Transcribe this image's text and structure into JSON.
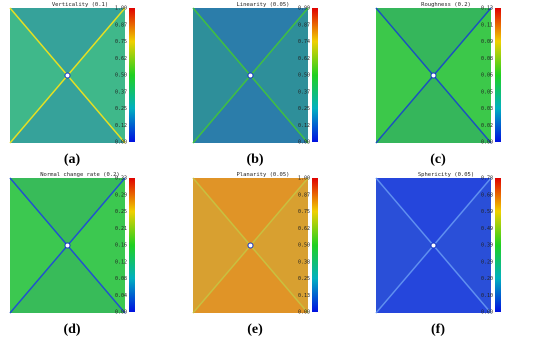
{
  "panels": [
    {
      "title": "Verticality (0.1)",
      "ticks": [
        "1.00",
        "0.87",
        "0.75",
        "0.62",
        "0.50",
        "0.37",
        "0.25",
        "0.12",
        "0.00"
      ],
      "label": "(a)"
    },
    {
      "title": "Linearity (0.05)",
      "ticks": [
        "0.99",
        "0.87",
        "0.74",
        "0.62",
        "0.50",
        "0.37",
        "0.25",
        "0.12",
        "0.00"
      ],
      "label": "(b)"
    },
    {
      "title": "Roughness (0.2)",
      "ticks": [
        "0.13",
        "0.11",
        "0.09",
        "0.08",
        "0.06",
        "0.05",
        "0.03",
        "0.02",
        "0.00"
      ],
      "label": "(c)"
    },
    {
      "title": "Normal change rate (0.2)",
      "ticks": [
        "0.33",
        "0.29",
        "0.25",
        "0.21",
        "0.16",
        "0.12",
        "0.08",
        "0.04",
        "0.00"
      ],
      "label": "(d)"
    },
    {
      "title": "Planarity (0.05)",
      "ticks": [
        "1.00",
        "0.87",
        "0.75",
        "0.62",
        "0.50",
        "0.38",
        "0.25",
        "0.13",
        "0.00"
      ],
      "label": "(e)"
    },
    {
      "title": "Sphericity (0.05)",
      "ticks": [
        "0.78",
        "0.68",
        "0.59",
        "0.49",
        "0.39",
        "0.29",
        "0.20",
        "0.10",
        "0.00"
      ],
      "label": "(f)"
    }
  ]
}
